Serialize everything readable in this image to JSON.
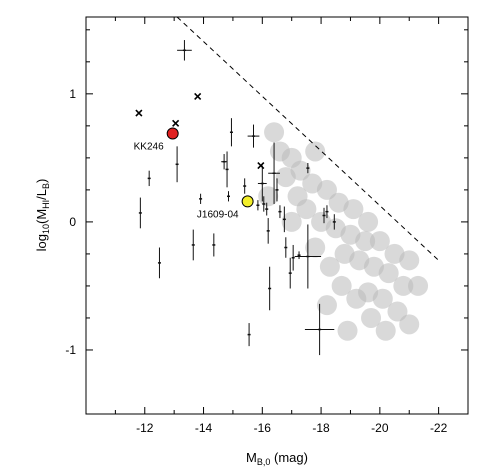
{
  "chart_data": {
    "type": "scatter",
    "title": "",
    "xlabel": "M",
    "xlabel_sub": "B,0",
    "xlabel_unit": " (mag)",
    "ylabel_prefix": "log",
    "ylabel_prefix_sub": "10",
    "ylabel_open": "(M",
    "ylabel_hi_sub": "HI",
    "ylabel_slash": "/L",
    "ylabel_b_sub": "B",
    "ylabel_close": ")",
    "xlim": [
      -10,
      -23
    ],
    "ylim": [
      -1.5,
      1.6
    ],
    "x_ticks": [
      -12,
      -14,
      -16,
      -18,
      -20,
      -22
    ],
    "x_tick_labels": [
      "-12",
      "-14",
      "-16",
      "-18",
      "-20",
      "-22"
    ],
    "y_ticks": [
      -1,
      0,
      1
    ],
    "y_tick_labels": [
      "-1",
      "0",
      "1"
    ],
    "y_minor_ticks": [
      -1.5,
      -0.75,
      -0.5,
      -0.25,
      0.25,
      0.5,
      0.75,
      1.25,
      1.5
    ],
    "grid": false,
    "upper_limit_line": {
      "style": "dashed",
      "x": [
        -13.1,
        -22.0
      ],
      "y": [
        1.6,
        -0.3
      ]
    },
    "highlighted_points": [
      {
        "label": "KK246",
        "x": -12.95,
        "y": 0.69,
        "color": "#e02020"
      },
      {
        "label": "J1609-04",
        "x": -15.5,
        "y": 0.16,
        "color": "#f2ee2a"
      }
    ],
    "cross_points": [
      {
        "x": -11.8,
        "y": 0.85
      },
      {
        "x": -13.05,
        "y": 0.77
      },
      {
        "x": -13.8,
        "y": 0.98
      },
      {
        "x": -15.95,
        "y": 0.44
      }
    ],
    "error_points": [
      {
        "x": -11.85,
        "y": 0.07,
        "ex": 0.0,
        "ey": 0.12
      },
      {
        "x": -12.15,
        "y": 0.34,
        "ex": 0.0,
        "ey": 0.06
      },
      {
        "x": -12.5,
        "y": -0.32,
        "ex": 0.0,
        "ey": 0.12
      },
      {
        "x": -13.1,
        "y": 0.45,
        "ex": 0.0,
        "ey": 0.14
      },
      {
        "x": -13.35,
        "y": 1.34,
        "ex": 0.25,
        "ey": 0.08
      },
      {
        "x": -13.65,
        "y": -0.18,
        "ex": 0.0,
        "ey": 0.12
      },
      {
        "x": -13.9,
        "y": 0.18,
        "ex": 0.0,
        "ey": 0.04
      },
      {
        "x": -14.35,
        "y": -0.18,
        "ex": 0.0,
        "ey": 0.09
      },
      {
        "x": -14.7,
        "y": 0.47,
        "ex": 0.1,
        "ey": 0.06
      },
      {
        "x": -14.8,
        "y": 0.41,
        "ex": 0.0,
        "ey": 0.14
      },
      {
        "x": -14.85,
        "y": 0.2,
        "ex": 0.0,
        "ey": 0.04
      },
      {
        "x": -14.95,
        "y": 0.7,
        "ex": 0.0,
        "ey": 0.11
      },
      {
        "x": -15.4,
        "y": 0.28,
        "ex": 0.0,
        "ey": 0.06
      },
      {
        "x": -15.7,
        "y": 0.67,
        "ex": 0.2,
        "ey": 0.09
      },
      {
        "x": -15.55,
        "y": -0.88,
        "ex": 0.0,
        "ey": 0.09
      },
      {
        "x": -15.85,
        "y": 0.13,
        "ex": 0.0,
        "ey": 0.04
      },
      {
        "x": -16.0,
        "y": 0.3,
        "ex": 0.15,
        "ey": 0.14
      },
      {
        "x": -16.05,
        "y": 0.14,
        "ex": 0.0,
        "ey": 0.06
      },
      {
        "x": -16.15,
        "y": 0.1,
        "ex": 0.0,
        "ey": 0.05
      },
      {
        "x": -16.2,
        "y": -0.07,
        "ex": 0.0,
        "ey": 0.1
      },
      {
        "x": -16.25,
        "y": -0.52,
        "ex": 0.0,
        "ey": 0.17
      },
      {
        "x": -16.4,
        "y": 0.38,
        "ex": 0.2,
        "ey": 0.24
      },
      {
        "x": -16.5,
        "y": 0.25,
        "ex": 0.0,
        "ey": 0.09
      },
      {
        "x": -16.6,
        "y": 0.08,
        "ex": 0.0,
        "ey": 0.05
      },
      {
        "x": -16.75,
        "y": 0.02,
        "ex": 0.0,
        "ey": 0.1
      },
      {
        "x": -16.8,
        "y": -0.2,
        "ex": 0.0,
        "ey": 0.08
      },
      {
        "x": -16.95,
        "y": -0.4,
        "ex": 0.0,
        "ey": 0.12
      },
      {
        "x": -17.05,
        "y": -0.28,
        "ex": 0.0,
        "ey": 0.1
      },
      {
        "x": -17.25,
        "y": -0.26,
        "ex": 0.0,
        "ey": 0.03
      },
      {
        "x": -17.55,
        "y": -0.27,
        "ex": 0.45,
        "ey": 0.25
      },
      {
        "x": -17.55,
        "y": 0.42,
        "ex": 0.0,
        "ey": 0.04
      },
      {
        "x": -17.95,
        "y": -0.84,
        "ex": 0.5,
        "ey": 0.2
      },
      {
        "x": -18.1,
        "y": 0.05,
        "ex": 0.0,
        "ey": 0.06
      },
      {
        "x": -18.2,
        "y": 0.08,
        "ex": 0.0,
        "ey": 0.05
      },
      {
        "x": -18.45,
        "y": 0.0,
        "ex": 0.0,
        "ey": 0.06
      }
    ],
    "density_points": [
      {
        "x": -16.6,
        "y": 0.55
      },
      {
        "x": -17.0,
        "y": 0.5
      },
      {
        "x": -16.8,
        "y": 0.35
      },
      {
        "x": -17.3,
        "y": 0.4
      },
      {
        "x": -17.7,
        "y": 0.3
      },
      {
        "x": -18.2,
        "y": 0.25
      },
      {
        "x": -18.6,
        "y": 0.15
      },
      {
        "x": -19.1,
        "y": 0.1
      },
      {
        "x": -17.5,
        "y": 0.1
      },
      {
        "x": -17.2,
        "y": 0.2
      },
      {
        "x": -18.0,
        "y": 0.0
      },
      {
        "x": -18.5,
        "y": -0.05
      },
      {
        "x": -19.0,
        "y": -0.1
      },
      {
        "x": -19.5,
        "y": -0.15
      },
      {
        "x": -18.8,
        "y": -0.25
      },
      {
        "x": -19.3,
        "y": -0.3
      },
      {
        "x": -19.8,
        "y": -0.35
      },
      {
        "x": -20.3,
        "y": -0.4
      },
      {
        "x": -20.8,
        "y": -0.5
      },
      {
        "x": -19.6,
        "y": -0.55
      },
      {
        "x": -20.1,
        "y": -0.6
      },
      {
        "x": -20.6,
        "y": -0.7
      },
      {
        "x": -21.0,
        "y": -0.8
      },
      {
        "x": -20.2,
        "y": -0.85
      },
      {
        "x": -19.7,
        "y": -0.75
      },
      {
        "x": -19.2,
        "y": -0.6
      },
      {
        "x": -18.7,
        "y": -0.5
      },
      {
        "x": -18.3,
        "y": -0.35
      },
      {
        "x": -17.8,
        "y": -0.2
      },
      {
        "x": -18.2,
        "y": -0.65
      },
      {
        "x": -18.9,
        "y": -0.85
      },
      {
        "x": -20.5,
        "y": -0.25
      },
      {
        "x": -21.0,
        "y": -0.3
      },
      {
        "x": -21.3,
        "y": -0.5
      },
      {
        "x": -16.4,
        "y": 0.7
      },
      {
        "x": -17.8,
        "y": 0.55
      },
      {
        "x": -19.6,
        "y": 0.0
      },
      {
        "x": -20.0,
        "y": -0.15
      },
      {
        "x": -17.0,
        "y": 0.0
      },
      {
        "x": -16.2,
        "y": 0.2
      }
    ],
    "density_color": "#b9b9b9",
    "error_color": "#111111"
  }
}
